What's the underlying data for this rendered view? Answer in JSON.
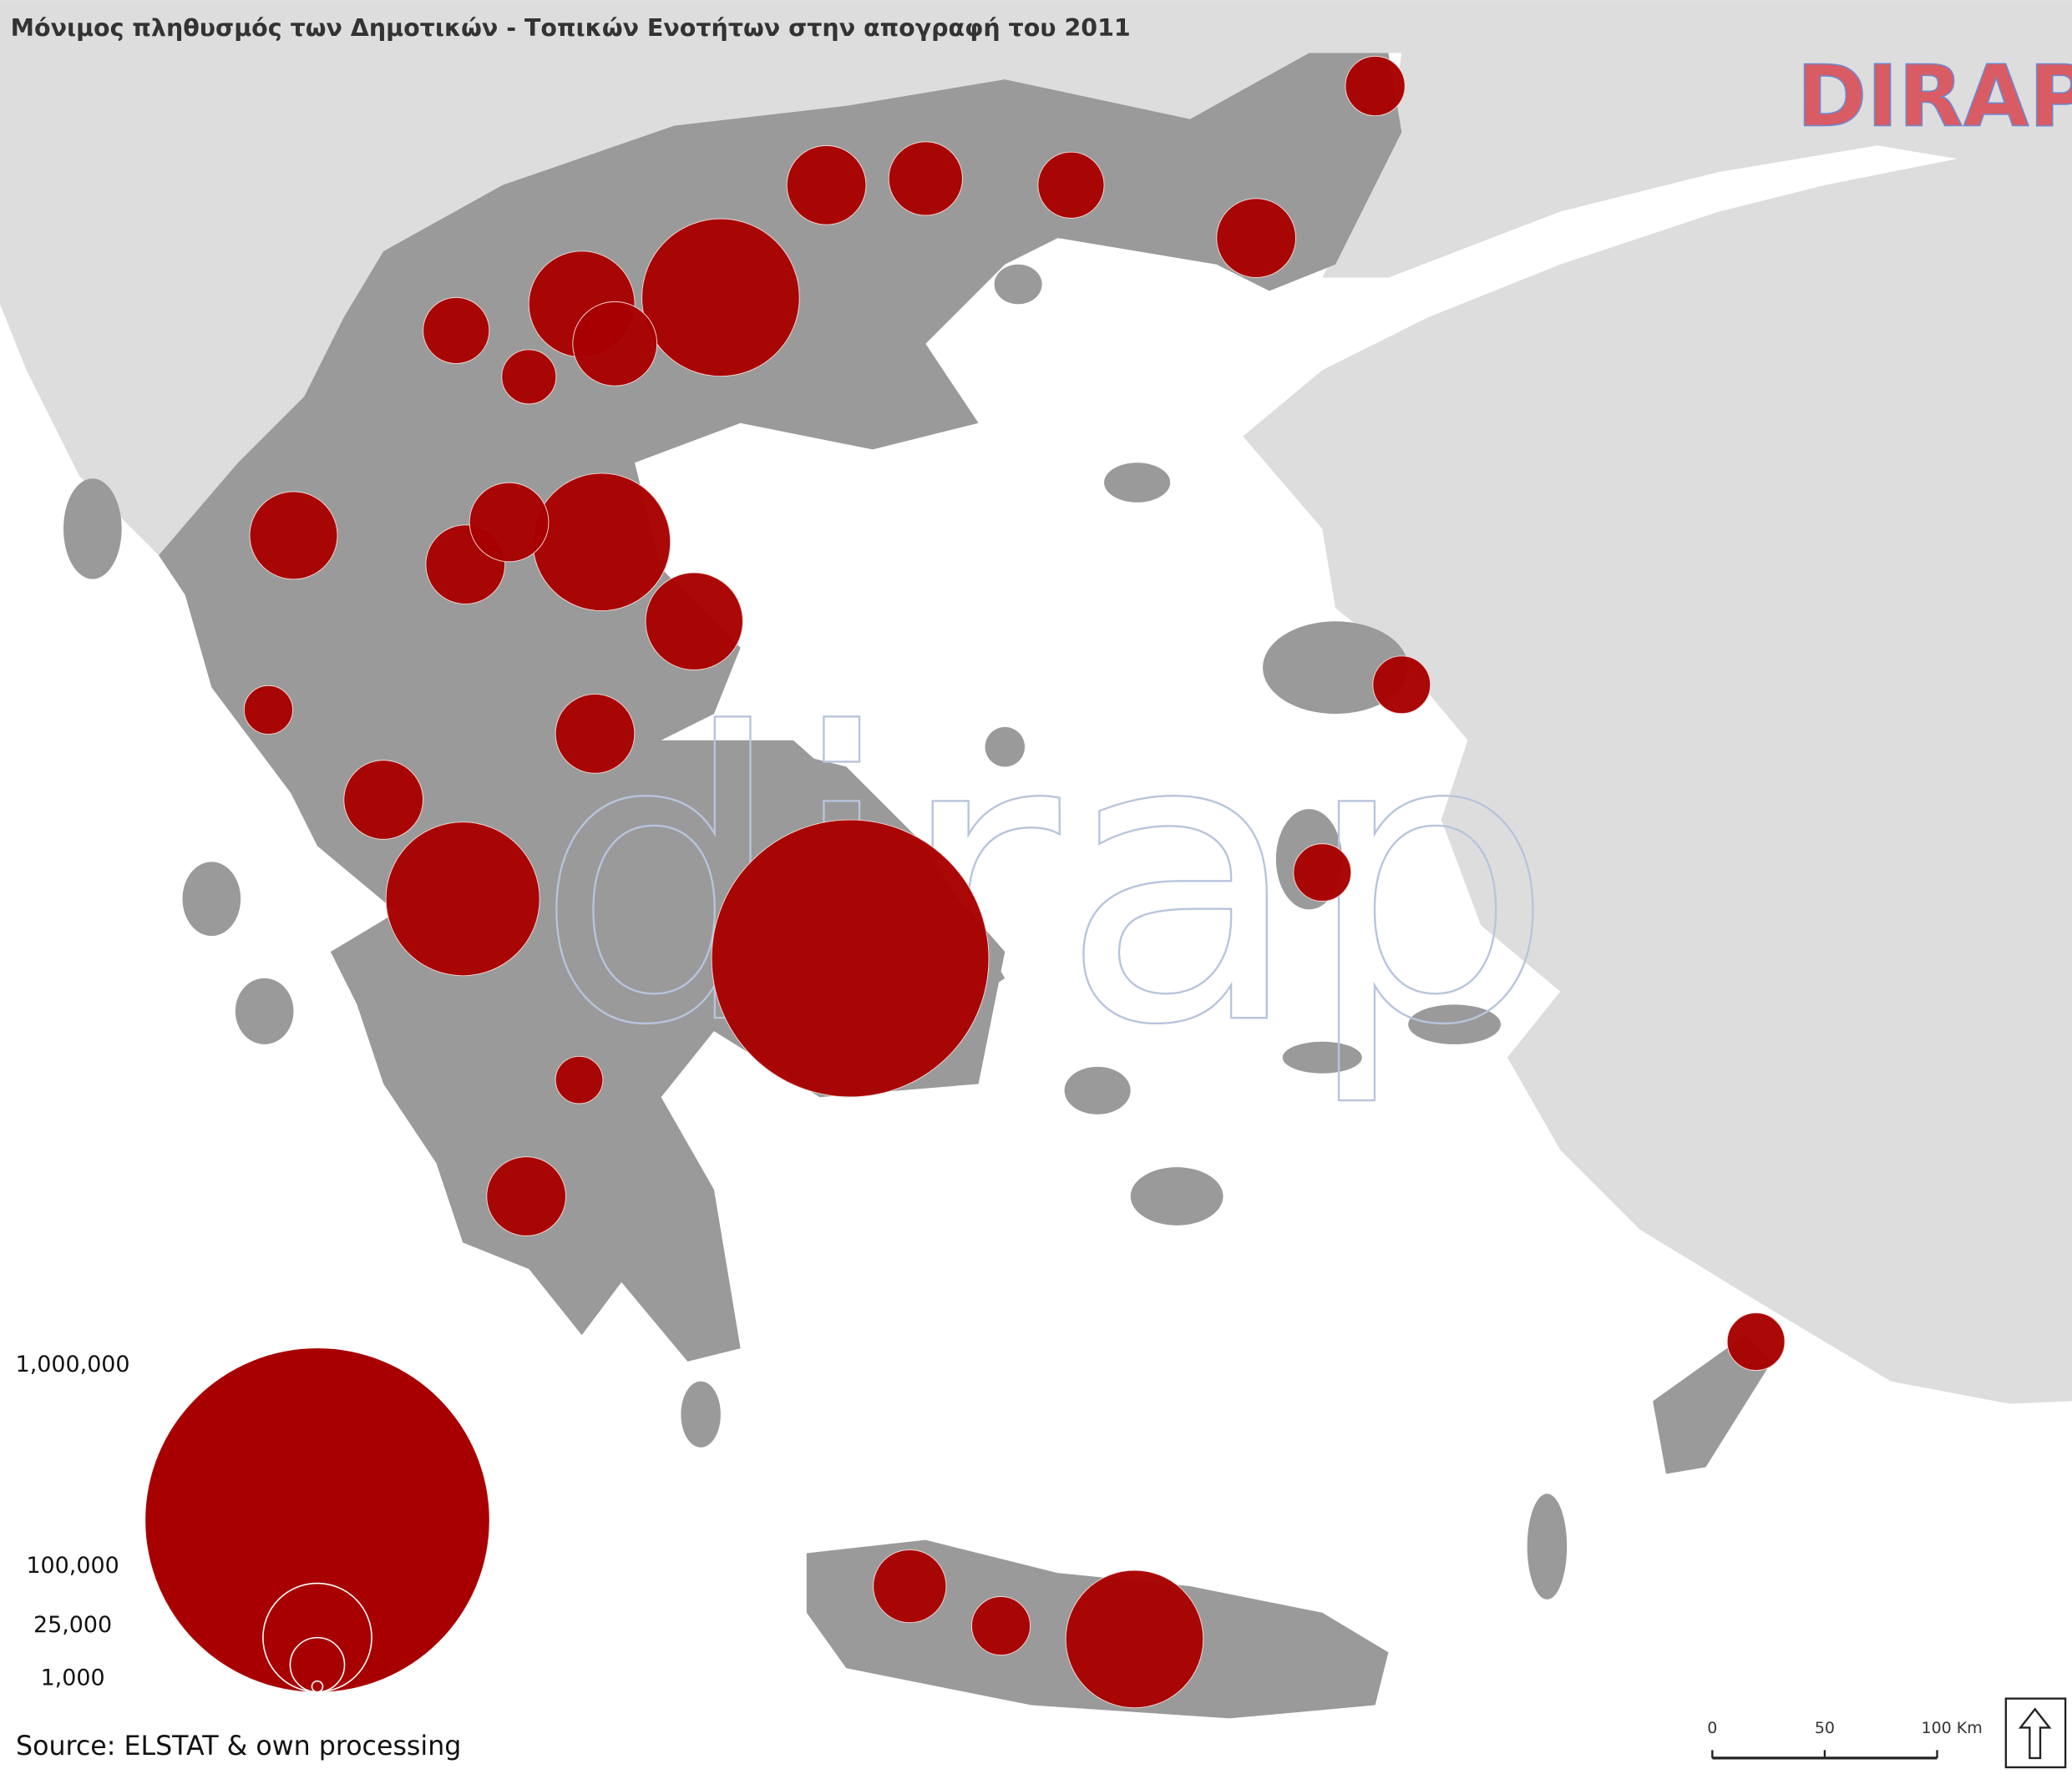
{
  "title": "Μόνιμος πληθυσμός των Δημοτικών - Τοπικών Ενοτήτων στην απογραφή του 2011",
  "logo": "DIRAP",
  "watermark": "dirap",
  "source": "Source: ELSTAT & own processing",
  "legend": {
    "items": [
      {
        "value": 1000000,
        "label": "1,000,000"
      },
      {
        "value": 100000,
        "label": "100,000"
      },
      {
        "value": 25000,
        "label": "25,000"
      },
      {
        "value": 1000,
        "label": "1,000"
      }
    ]
  },
  "scale_bar": {
    "ticks": [
      0,
      50,
      {
        "value": 100,
        "label": "100 Km"
      }
    ]
  },
  "bubbles": [
    650000,
    210000,
    200000,
    160000,
    160000,
    80000,
    65000,
    45000,
    95000,
    53000,
    53000,
    60000,
    46000,
    53000,
    53000,
    29000,
    28000,
    28000,
    37000,
    53000,
    37000,
    28000,
    53000,
    53000,
    19000,
    30000,
    25000,
    20000
  ]
}
